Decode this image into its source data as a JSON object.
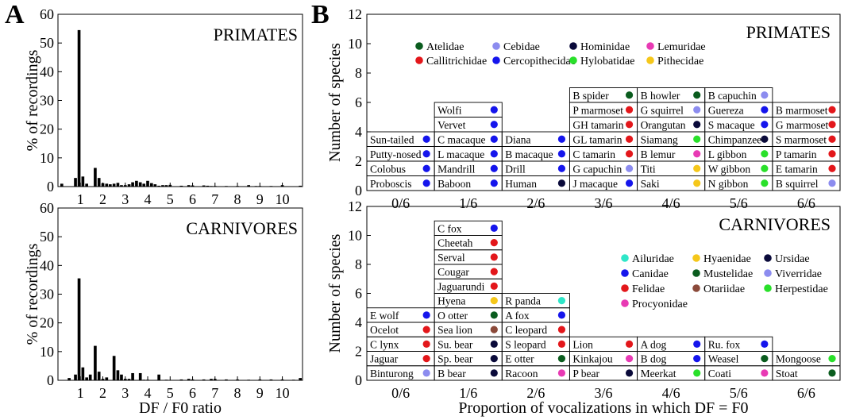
{
  "panels": {
    "A_letter": "A",
    "B_letter": "B"
  },
  "chart_data": [
    {
      "type": "bar",
      "title": "PRIMATES",
      "xlabel": "",
      "ylabel": "% of recordings",
      "ylim": [
        0,
        60
      ],
      "yticks": [
        0,
        10,
        20,
        30,
        40,
        50,
        60
      ],
      "xlim": [
        0,
        10.9
      ],
      "xticks": [
        "1",
        "2",
        "3",
        "4",
        "5",
        "6",
        "7",
        "8",
        "9",
        "10"
      ],
      "bin_width": 0.166,
      "x": [
        0.17,
        0.78,
        0.94,
        1.11,
        1.28,
        1.66,
        1.83,
        2.0,
        2.17,
        2.33,
        2.5,
        2.67,
        2.83,
        3.0,
        3.17,
        3.33,
        3.5,
        3.67,
        3.83,
        4.0,
        4.17,
        4.33,
        4.5,
        4.67,
        4.83,
        5.0,
        5.5,
        5.83,
        6.0,
        6.5,
        6.67,
        6.83,
        7.0,
        7.5,
        8.0,
        8.5,
        8.83,
        9.0,
        9.5,
        10.0,
        10.8
      ],
      "values": [
        1.0,
        3.0,
        54.5,
        3.5,
        1.0,
        6.5,
        3.0,
        1.2,
        1.0,
        0.8,
        1.0,
        1.3,
        0.5,
        0.5,
        0.8,
        1.5,
        2.0,
        1.5,
        1.0,
        2.0,
        1.2,
        0.8,
        0.3,
        0.5,
        0.5,
        0.6,
        0.3,
        0.5,
        0.4,
        0.4,
        0.3,
        0.2,
        0.2,
        0.2,
        0.2,
        0.5,
        0.2,
        0.2,
        0.2,
        0.5,
        0.3
      ]
    },
    {
      "type": "bar",
      "title": "CARNIVORES",
      "xlabel": "DF / F0 ratio",
      "ylabel": "% of recordings",
      "ylim": [
        0,
        60
      ],
      "yticks": [
        0,
        10,
        20,
        30,
        40,
        50,
        60
      ],
      "xlim": [
        0,
        10.9
      ],
      "xticks": [
        "1",
        "2",
        "3",
        "4",
        "5",
        "6",
        "7",
        "8",
        "9",
        "10"
      ],
      "bin_width": 0.166,
      "x": [
        0.5,
        0.78,
        0.94,
        1.11,
        1.28,
        1.44,
        1.66,
        1.83,
        2.0,
        2.17,
        2.5,
        2.67,
        2.83,
        3.0,
        3.17,
        3.33,
        3.67,
        3.83,
        4.0,
        4.5,
        4.83,
        5.5,
        5.83,
        6.0,
        6.5,
        6.83,
        7.0,
        7.5,
        8.0,
        8.5,
        9.0,
        9.5,
        10.0,
        10.5,
        10.8
      ],
      "values": [
        0.8,
        2.0,
        35.5,
        4.5,
        1.0,
        2.0,
        12.0,
        3.0,
        0.5,
        1.0,
        8.5,
        3.5,
        2.0,
        0.5,
        0.5,
        2.5,
        2.5,
        0.2,
        0.2,
        2.0,
        0.2,
        0.3,
        0.5,
        0.3,
        0.3,
        0.5,
        0.5,
        0.3,
        0.3,
        0.2,
        0.3,
        0.3,
        0.3,
        0.2,
        0.8
      ]
    },
    {
      "type": "table",
      "title": "PRIMATES",
      "xlabel": "",
      "ylabel": "Number of species",
      "ylim": [
        0,
        12
      ],
      "yticks": [
        0,
        2,
        4,
        6,
        8,
        10,
        12
      ],
      "categories": [
        "0/6",
        "1/6",
        "2/6",
        "3/6",
        "4/6",
        "5/6",
        "6/6"
      ],
      "legend": [
        {
          "name": "Atelidae",
          "color": "#0a5c1e"
        },
        {
          "name": "Cebidae",
          "color": "#8c8cef"
        },
        {
          "name": "Hominidae",
          "color": "#0a0a3a"
        },
        {
          "name": "Lemuridae",
          "color": "#e83ab4"
        },
        {
          "name": "Callitrichidae",
          "color": "#e3171b"
        },
        {
          "name": "Cercopithecidae",
          "color": "#1515ec"
        },
        {
          "name": "Hylobatidae",
          "color": "#29e02a"
        },
        {
          "name": "Pithecidae",
          "color": "#f5c71a"
        }
      ],
      "columns": [
        [
          {
            "name": "Proboscis",
            "family": "Cercopithecidae"
          },
          {
            "name": "Colobus",
            "family": "Cercopithecidae"
          },
          {
            "name": "Putty-nosed",
            "family": "Cercopithecidae"
          },
          {
            "name": "Sun-tailed",
            "family": "Cercopithecidae"
          }
        ],
        [
          {
            "name": "Baboon",
            "family": "Cercopithecidae"
          },
          {
            "name": "Mandrill",
            "family": "Cercopithecidae"
          },
          {
            "name": "L macaque",
            "family": "Cercopithecidae"
          },
          {
            "name": "C macaque",
            "family": "Cercopithecidae"
          },
          {
            "name": "Vervet",
            "family": "Cercopithecidae"
          },
          {
            "name": "Wolfi",
            "family": "Cercopithecidae"
          }
        ],
        [
          {
            "name": "Human",
            "family": "Hominidae"
          },
          {
            "name": "Drill",
            "family": "Cercopithecidae"
          },
          {
            "name": "B macaque",
            "family": "Cercopithecidae"
          },
          {
            "name": "Diana",
            "family": "Cercopithecidae"
          }
        ],
        [
          {
            "name": "J macaque",
            "family": "Cercopithecidae"
          },
          {
            "name": "G capuchin",
            "family": "Cebidae"
          },
          {
            "name": "C tamarin",
            "family": "Callitrichidae"
          },
          {
            "name": "GL tamarin",
            "family": "Callitrichidae"
          },
          {
            "name": "GH tamarin",
            "family": "Callitrichidae"
          },
          {
            "name": "P marmoset",
            "family": "Callitrichidae"
          },
          {
            "name": "B spider",
            "family": "Atelidae"
          }
        ],
        [
          {
            "name": "Saki",
            "family": "Pithecidae"
          },
          {
            "name": "Titi",
            "family": "Pithecidae"
          },
          {
            "name": "B lemur",
            "family": "Lemuridae"
          },
          {
            "name": "Siamang",
            "family": "Hylobatidae"
          },
          {
            "name": "Orangutan",
            "family": "Hominidae"
          },
          {
            "name": "G squirrel",
            "family": "Cebidae"
          },
          {
            "name": "B howler",
            "family": "Atelidae"
          }
        ],
        [
          {
            "name": "N gibbon",
            "family": "Hylobatidae"
          },
          {
            "name": "W gibbon",
            "family": "Hylobatidae"
          },
          {
            "name": "L gibbon",
            "family": "Hylobatidae"
          },
          {
            "name": "Chimpanzee",
            "family": "Hominidae"
          },
          {
            "name": "S macaque",
            "family": "Cercopithecidae"
          },
          {
            "name": "Guereza",
            "family": "Cercopithecidae"
          },
          {
            "name": "B capuchin",
            "family": "Cebidae"
          }
        ],
        [
          {
            "name": "B squirrel",
            "family": "Cebidae"
          },
          {
            "name": "E tamarin",
            "family": "Callitrichidae"
          },
          {
            "name": "P tamarin",
            "family": "Callitrichidae"
          },
          {
            "name": "S marmoset",
            "family": "Callitrichidae"
          },
          {
            "name": "G marmoset",
            "family": "Callitrichidae"
          },
          {
            "name": "B marmoset",
            "family": "Callitrichidae"
          }
        ]
      ]
    },
    {
      "type": "table",
      "title": "CARNIVORES",
      "xlabel": "Proportion of vocalizations in which DF = F0",
      "ylabel": "Number of species",
      "ylim": [
        0,
        12
      ],
      "yticks": [
        0,
        2,
        4,
        6,
        8,
        10,
        12
      ],
      "categories": [
        "0/6",
        "1/6",
        "2/6",
        "3/6",
        "4/6",
        "5/6",
        "6/6"
      ],
      "legend": [
        {
          "name": "Ailuridae",
          "color": "#2ee6c8"
        },
        {
          "name": "Hyaenidae",
          "color": "#f5c71a"
        },
        {
          "name": "Ursidae",
          "color": "#0a0a3a"
        },
        {
          "name": "Canidae",
          "color": "#1515ec"
        },
        {
          "name": "Mustelidae",
          "color": "#0a5c1e"
        },
        {
          "name": "Viverridae",
          "color": "#8c8cef"
        },
        {
          "name": "Felidae",
          "color": "#e3171b"
        },
        {
          "name": "Otariidae",
          "color": "#8b4a3a"
        },
        {
          "name": "Herpestidae",
          "color": "#29e02a"
        },
        {
          "name": "Procyonidae",
          "color": "#e83ab4"
        }
      ],
      "columns": [
        [
          {
            "name": "Binturong",
            "family": "Viverridae"
          },
          {
            "name": "Jaguar",
            "family": "Felidae"
          },
          {
            "name": "C lynx",
            "family": "Felidae"
          },
          {
            "name": "Ocelot",
            "family": "Felidae"
          },
          {
            "name": "E wolf",
            "family": "Canidae"
          }
        ],
        [
          {
            "name": "B bear",
            "family": "Ursidae"
          },
          {
            "name": "Sp. bear",
            "family": "Ursidae"
          },
          {
            "name": "Su. bear",
            "family": "Ursidae"
          },
          {
            "name": "Sea lion",
            "family": "Otariidae"
          },
          {
            "name": "O otter",
            "family": "Mustelidae"
          },
          {
            "name": "Hyena",
            "family": "Hyaenidae"
          },
          {
            "name": "Jaguarundi",
            "family": "Felidae"
          },
          {
            "name": "Cougar",
            "family": "Felidae"
          },
          {
            "name": "Serval",
            "family": "Felidae"
          },
          {
            "name": "Cheetah",
            "family": "Felidae"
          },
          {
            "name": "C fox",
            "family": "Canidae"
          }
        ],
        [
          {
            "name": "Racoon",
            "family": "Procyonidae"
          },
          {
            "name": "E otter",
            "family": "Mustelidae"
          },
          {
            "name": "S leopard",
            "family": "Felidae"
          },
          {
            "name": "C leopard",
            "family": "Felidae"
          },
          {
            "name": "A fox",
            "family": "Canidae"
          },
          {
            "name": "R panda",
            "family": "Ailuridae"
          }
        ],
        [
          {
            "name": "P bear",
            "family": "Ursidae"
          },
          {
            "name": "Kinkajou",
            "family": "Procyonidae"
          },
          {
            "name": "Lion",
            "family": "Felidae"
          }
        ],
        [
          {
            "name": "Meerkat",
            "family": "Herpestidae"
          },
          {
            "name": "B dog",
            "family": "Canidae"
          },
          {
            "name": "A dog",
            "family": "Canidae"
          }
        ],
        [
          {
            "name": "Coati",
            "family": "Procyonidae"
          },
          {
            "name": "Weasel",
            "family": "Mustelidae"
          },
          {
            "name": "Ru. fox",
            "family": "Canidae"
          }
        ],
        [
          {
            "name": "Stoat",
            "family": "Mustelidae"
          },
          {
            "name": "Mongoose",
            "family": "Herpestidae"
          }
        ]
      ]
    }
  ]
}
